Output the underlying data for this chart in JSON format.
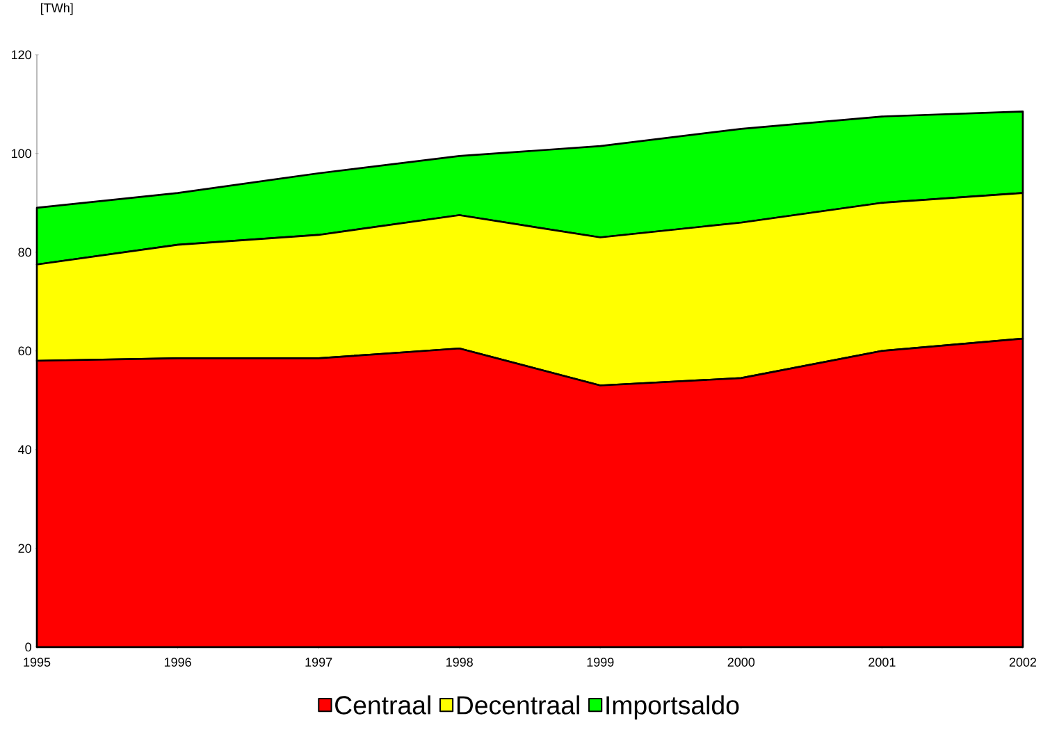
{
  "chart_data": {
    "type": "area",
    "stacked": true,
    "ylabel": "[TWh]",
    "x": [
      1995,
      1996,
      1997,
      1998,
      1999,
      2000,
      2001,
      2002
    ],
    "xlim": [
      1995,
      2002
    ],
    "xticks": [
      1995,
      1996,
      1997,
      1998,
      1999,
      2000,
      2001,
      2002
    ],
    "ylim": [
      0,
      120
    ],
    "yticks": [
      0,
      20,
      40,
      60,
      80,
      100,
      120
    ],
    "grid": false,
    "legend": "bottom",
    "series": [
      {
        "name": "Centraal",
        "color": "#ff0000",
        "values": [
          58,
          58.5,
          58.5,
          60.5,
          53,
          54.5,
          60,
          62.5
        ]
      },
      {
        "name": "Decentraal",
        "color": "#ffff00",
        "values": [
          19.5,
          23,
          25,
          27,
          30,
          31.5,
          30,
          29.5
        ]
      },
      {
        "name": "Importsaldo",
        "color": "#00ff00",
        "values": [
          11.5,
          10.5,
          12.5,
          12,
          18.5,
          19,
          17.5,
          16.5
        ]
      }
    ]
  }
}
